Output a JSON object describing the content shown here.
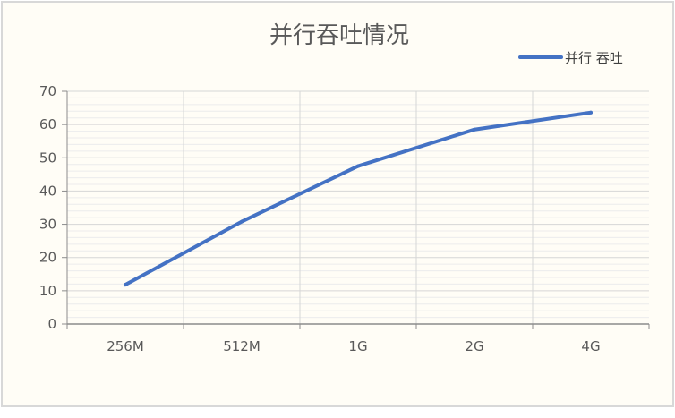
{
  "chart_data": {
    "type": "line",
    "title": "并行吞吐情况",
    "xlabel": "",
    "ylabel": "",
    "categories": [
      "256M",
      "512M",
      "1G",
      "2G",
      "4G"
    ],
    "series": [
      {
        "name": "并行 吞吐",
        "values": [
          11.8,
          30.8,
          47.5,
          58.5,
          63.6
        ],
        "color": "#4472c4"
      }
    ],
    "ylim": [
      0,
      70
    ],
    "yticks": [
      0,
      10,
      20,
      30,
      40,
      50,
      60,
      70
    ],
    "minor_gridlines": true,
    "legend_position": "top-right",
    "grid": true
  }
}
